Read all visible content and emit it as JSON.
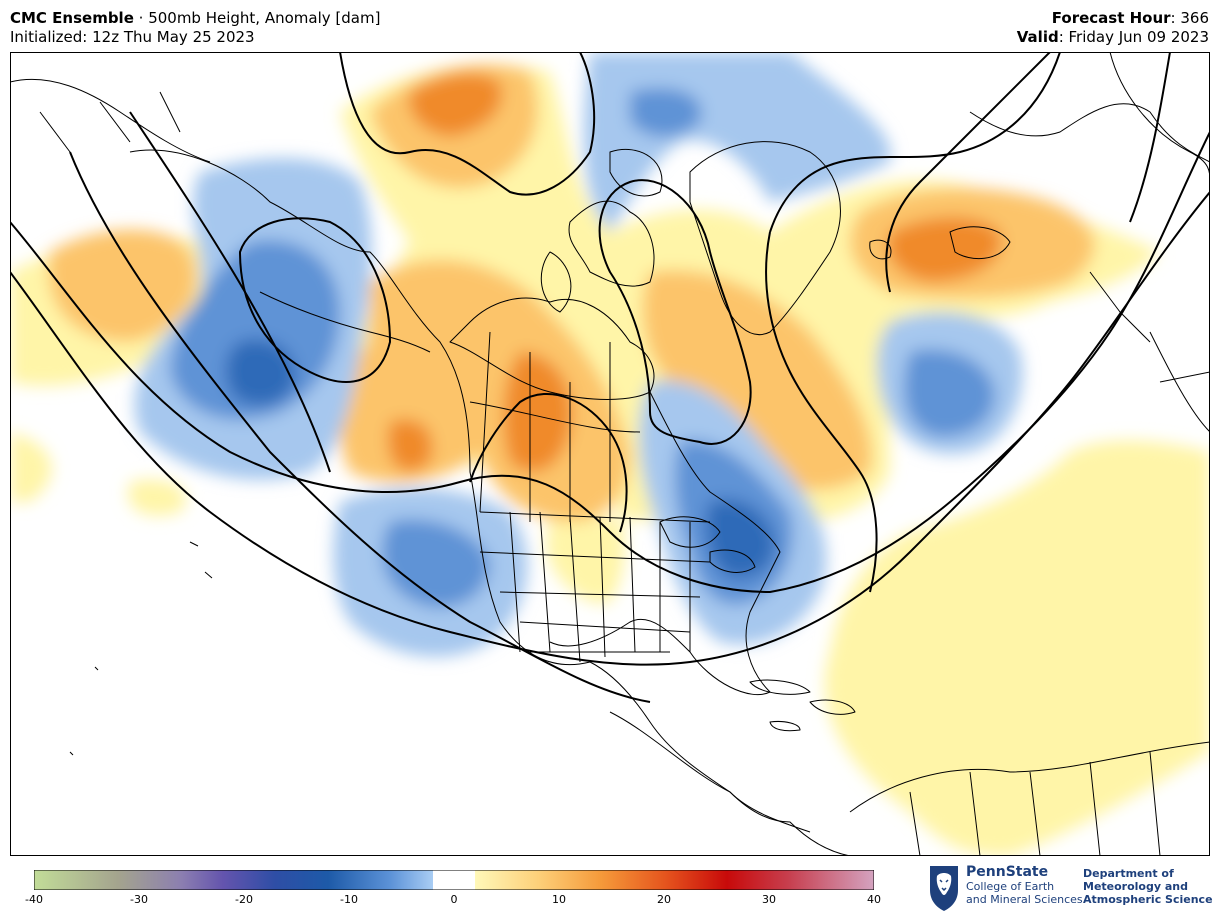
{
  "header": {
    "model_name": "CMC Ensemble",
    "separator": " · ",
    "product": "500mb Height, Anomaly [dam]",
    "initialized_label": "Initialized: 12z Thu May 25 2023",
    "forecast_hour_label": "Forecast Hour",
    "forecast_hour_value": ": 366",
    "valid_label": "Valid",
    "valid_value": ": Friday Jun 09 2023"
  },
  "map": {
    "anomaly_colors": {
      "neg_strong": "#2f6bb8",
      "neg_mid": "#5f93d6",
      "neg_light": "#a6c7ee",
      "pos_light": "#fff5a8",
      "pos_mid": "#fcc46a",
      "pos_strong": "#f08a2a",
      "pos_peak": "#e0601a"
    },
    "contour_color": "#000000"
  },
  "colorbar": {
    "min": -40,
    "max": 40,
    "ticks": [
      "-40",
      "-30",
      "-20",
      "-10",
      "0",
      "10",
      "20",
      "30",
      "40"
    ],
    "stops": [
      {
        "v": -40,
        "c": "#c2dd98"
      },
      {
        "v": -32,
        "c": "#a4a48e"
      },
      {
        "v": -26,
        "c": "#8c7fb0"
      },
      {
        "v": -22,
        "c": "#6454ae"
      },
      {
        "v": -17,
        "c": "#2e4ea6"
      },
      {
        "v": -12,
        "c": "#1d5aa8"
      },
      {
        "v": -6,
        "c": "#5d93d8"
      },
      {
        "v": -2,
        "c": "#a9cdf4"
      },
      {
        "v": -2,
        "c": "#ffffff"
      },
      {
        "v": 2,
        "c": "#ffffff"
      },
      {
        "v": 2,
        "c": "#fff8b8"
      },
      {
        "v": 8,
        "c": "#fdd07a"
      },
      {
        "v": 14,
        "c": "#f59a3a"
      },
      {
        "v": 20,
        "c": "#e6561e"
      },
      {
        "v": 26,
        "c": "#c80a0a"
      },
      {
        "v": 32,
        "c": "#c74050"
      },
      {
        "v": 40,
        "c": "#d4a3c0"
      }
    ]
  },
  "logo": {
    "university": "PennState",
    "college_line1": "College of Earth",
    "college_line2": "and Mineral Sciences",
    "dept_line1": "Department of",
    "dept_line2": "Meteorology and",
    "dept_line3": "Atmospheric Science",
    "brand_color": "#1e407c"
  }
}
